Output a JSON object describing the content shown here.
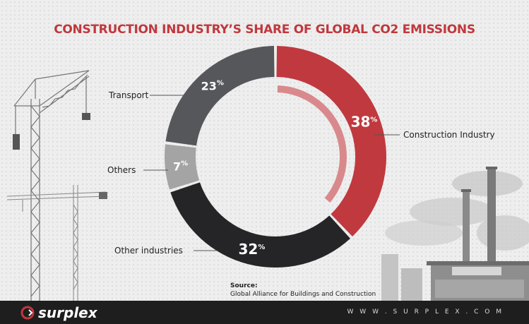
{
  "title": "CONSTRUCTION INDUSTRY’S SHARE OF GLOBAL CO2 EMISSIONS",
  "chart_data": {
    "type": "pie",
    "title": "CONSTRUCTION INDUSTRY’S SHARE OF GLOBAL CO2 EMISSIONS",
    "slices": [
      {
        "name": "Construction Industry",
        "value": 38,
        "label": "38",
        "color": "#c0393f"
      },
      {
        "name": "Other industries",
        "value": 32,
        "label": "32",
        "color": "#252527"
      },
      {
        "name": "Others",
        "value": 7,
        "label": "7",
        "color": "#a4a4a4"
      },
      {
        "name": "Transport",
        "value": 23,
        "label": "23",
        "color": "#55575a"
      }
    ],
    "unit": "%",
    "legend": "callout-labels"
  },
  "source": {
    "heading": "Source:",
    "text": "Global Alliance for Buildings and Construction"
  },
  "footer": {
    "brand": "surplex",
    "url": "W W W . S U R P L E X . C O M"
  },
  "colors": {
    "accent": "#c0383d",
    "footer_bg": "#1e1e1e"
  }
}
